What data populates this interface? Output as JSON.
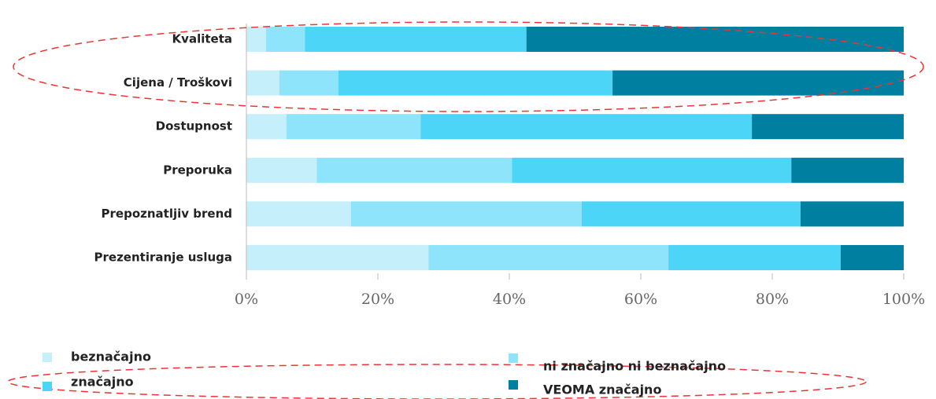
{
  "chart_data": {
    "type": "stacked_barh",
    "categories": [
      "Kvaliteta",
      "Cijena / Troškovi",
      "Dostupnost",
      "Preporuka",
      "Prepoznatljiv brend",
      "Prezentiranje usluga"
    ],
    "series": [
      {
        "name": "beznačajno",
        "color": "#c5f0fb",
        "values": [
          3.0,
          5.0,
          6.1,
          10.7,
          15.9,
          27.7
        ]
      },
      {
        "name": "ni značajno ni beznačajno",
        "color": "#8ee4fa",
        "values": [
          5.9,
          9.0,
          20.4,
          29.7,
          35.1,
          36.5
        ]
      },
      {
        "name": "značajno",
        "color": "#4dd5f7",
        "values": [
          33.7,
          41.7,
          50.4,
          42.5,
          33.3,
          26.2
        ]
      },
      {
        "name": "VEOMA značajno",
        "color": "#007fa0",
        "values": [
          57.4,
          44.3,
          23.1,
          17.1,
          15.7,
          9.6
        ]
      }
    ],
    "xlim": [
      0,
      100
    ],
    "xticks": [
      {
        "value": 0,
        "label": "0%"
      },
      {
        "value": 20,
        "label": "20%"
      },
      {
        "value": 40,
        "label": "40%"
      },
      {
        "value": 60,
        "label": "60%"
      },
      {
        "value": 80,
        "label": "80%"
      },
      {
        "value": 100,
        "label": "100%"
      }
    ]
  }
}
